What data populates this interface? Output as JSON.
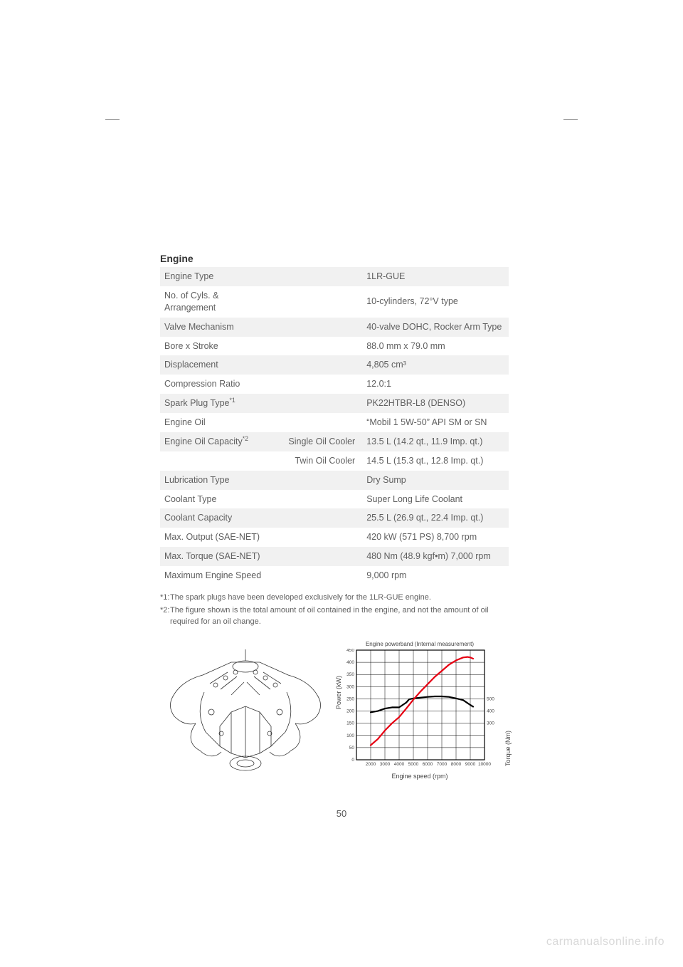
{
  "section_title": "Engine",
  "table": {
    "rows": [
      {
        "shade": true,
        "label": "Engine Type",
        "sub": "",
        "value": "1LR-GUE"
      },
      {
        "shade": false,
        "label": "No. of Cyls. & Arrangement",
        "sub": "",
        "value": "10-cylinders, 72°V type"
      },
      {
        "shade": true,
        "label": "Valve Mechanism",
        "sub": "",
        "value": "40-valve DOHC, Rocker Arm Type"
      },
      {
        "shade": false,
        "label": "Bore x Stroke",
        "sub": "",
        "value": "88.0 mm x 79.0 mm"
      },
      {
        "shade": true,
        "label": "Displacement",
        "sub": "",
        "value": "4,805 cm³"
      },
      {
        "shade": false,
        "label": "Compression Ratio",
        "sub": "",
        "value": "12.0:1"
      },
      {
        "shade": true,
        "label": "Spark Plug Type",
        "label_sup": "*1",
        "sub": "",
        "value": "PK22HTBR-L8 (DENSO)"
      },
      {
        "shade": false,
        "label": "Engine Oil",
        "sub": "",
        "value": "“Mobil 1  5W-50” API SM or SN"
      },
      {
        "shade": true,
        "label": "Engine Oil Capacity",
        "label_sup": "*2",
        "sub": "Single Oil Cooler",
        "value": "13.5 L (14.2 qt., 11.9 Imp. qt.)"
      },
      {
        "shade": false,
        "label": "",
        "sub": "Twin Oil Cooler",
        "value": "14.5 L (15.3 qt., 12.8 Imp. qt.)"
      },
      {
        "shade": true,
        "label": "Lubrication Type",
        "sub": "",
        "value": "Dry Sump"
      },
      {
        "shade": false,
        "label": "Coolant Type",
        "sub": "",
        "value": "Super Long Life Coolant"
      },
      {
        "shade": true,
        "label": "Coolant Capacity",
        "sub": "",
        "value": "25.5 L (26.9 qt., 22.4 Imp. qt.)"
      },
      {
        "shade": false,
        "label": "Max. Output (SAE-NET)",
        "sub": "",
        "value": "420 kW (571 PS) 8,700 rpm"
      },
      {
        "shade": true,
        "label": "Max. Torque (SAE-NET)",
        "sub": "",
        "value": "480 Nm (48.9 kgf•m) 7,000 rpm"
      },
      {
        "shade": false,
        "label": "Maximum Engine Speed",
        "sub": "",
        "value": "9,000 rpm"
      }
    ]
  },
  "footnotes": [
    {
      "mark": "*1:",
      "text": "The spark plugs have been developed exclusively for the 1LR-GUE engine."
    },
    {
      "mark": "*2:",
      "text": "The figure shown is the total amount of oil contained in the engine, and not the amount of oil required for an oil change."
    }
  ],
  "chart": {
    "title": "Engine powerband (Internal measurement)",
    "x_label": "Engine speed (rpm)",
    "y_left_label": "Power (kW)",
    "y_right_label": "Torque (Nm)",
    "plot": {
      "width": 180,
      "height": 150,
      "background": "#ffffff",
      "grid_color": "#000000",
      "grid_stroke": 0.5,
      "border_stroke": 1.2,
      "x_min": 1000,
      "x_max": 10000,
      "x_ticks": [
        2000,
        3000,
        4000,
        5000,
        6000,
        7000,
        8000,
        9000,
        10000
      ],
      "y_left_min": 0,
      "y_left_max": 450,
      "y_left_ticks": [
        0,
        50,
        100,
        150,
        200,
        250,
        300,
        350,
        400,
        450
      ],
      "y_right_ticks": [
        300,
        400,
        500
      ],
      "power_color": "#e60012",
      "power_stroke": 2.2,
      "torque_color": "#000000",
      "torque_stroke": 2.2,
      "power_series": [
        [
          2000,
          60
        ],
        [
          2500,
          85
        ],
        [
          3000,
          120
        ],
        [
          3500,
          150
        ],
        [
          4000,
          175
        ],
        [
          4500,
          210
        ],
        [
          5000,
          247
        ],
        [
          5500,
          280
        ],
        [
          6000,
          310
        ],
        [
          6500,
          340
        ],
        [
          7000,
          365
        ],
        [
          7500,
          390
        ],
        [
          8000,
          408
        ],
        [
          8500,
          420
        ],
        [
          8800,
          422
        ],
        [
          9000,
          420
        ],
        [
          9200,
          415
        ]
      ],
      "torque_series_kw_scale": [
        [
          2000,
          195
        ],
        [
          2500,
          200
        ],
        [
          3000,
          210
        ],
        [
          3500,
          215
        ],
        [
          4000,
          215
        ],
        [
          4500,
          235
        ],
        [
          4700,
          248
        ],
        [
          5000,
          252
        ],
        [
          5500,
          255
        ],
        [
          6000,
          258
        ],
        [
          6500,
          260
        ],
        [
          7000,
          260
        ],
        [
          7500,
          258
        ],
        [
          8000,
          252
        ],
        [
          8500,
          245
        ],
        [
          9000,
          225
        ],
        [
          9200,
          218
        ]
      ]
    }
  },
  "page_number": "50",
  "watermark": "carmanualsonline.info"
}
